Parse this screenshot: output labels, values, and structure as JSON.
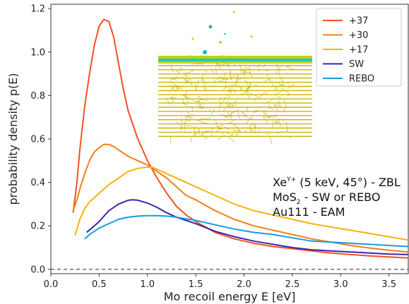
{
  "chart_data": {
    "type": "line",
    "xlabel": "Mo recoil energy E [eV]",
    "ylabel": "probability density p(E)",
    "xlim": [
      0.0,
      3.7
    ],
    "ylim": [
      -0.02,
      1.22
    ],
    "xticks": [
      "0.0",
      "0.5",
      "1.0",
      "1.5",
      "2.0",
      "2.5",
      "3.0",
      "3.5"
    ],
    "xtick_values": [
      0.0,
      0.5,
      1.0,
      1.5,
      2.0,
      2.5,
      3.0,
      3.5
    ],
    "yticks": [
      "0.0",
      "0.2",
      "0.4",
      "0.6",
      "0.8",
      "1.0",
      "1.2"
    ],
    "ytick_values": [
      0.0,
      0.2,
      0.4,
      0.6,
      0.8,
      1.0,
      1.2
    ],
    "legend_position": "top-right",
    "grid": false,
    "reference_line": {
      "y": 0.0,
      "style": "dashed",
      "color": "#222222"
    },
    "annotations": {
      "line1_main": "Xe",
      "line1_sup": "Y+",
      "line1_rest": " (5 keV, 45°)  - ZBL",
      "line2_main": "MoS",
      "line2_sub": "2",
      "line2_rest": " - SW or REBO",
      "line3": "Au111 - EAM"
    },
    "series": [
      {
        "name": "+37",
        "color": "#f4511e",
        "x": [
          0.23,
          0.27,
          0.3,
          0.35,
          0.4,
          0.45,
          0.5,
          0.55,
          0.6,
          0.65,
          0.7,
          0.75,
          0.8,
          0.9,
          1.0,
          1.1,
          1.2,
          1.3,
          1.4,
          1.5,
          1.7,
          1.9,
          2.1,
          2.3,
          2.5,
          2.7,
          2.9,
          3.1,
          3.3,
          3.5,
          3.7
        ],
        "y": [
          0.26,
          0.4,
          0.55,
          0.75,
          0.9,
          1.03,
          1.12,
          1.15,
          1.14,
          1.07,
          0.95,
          0.83,
          0.73,
          0.6,
          0.5,
          0.42,
          0.35,
          0.29,
          0.25,
          0.22,
          0.17,
          0.14,
          0.12,
          0.105,
          0.095,
          0.085,
          0.075,
          0.068,
          0.062,
          0.057,
          0.052
        ]
      },
      {
        "name": "+30",
        "color": "#f57f17",
        "x": [
          0.23,
          0.27,
          0.3,
          0.35,
          0.4,
          0.45,
          0.5,
          0.55,
          0.6,
          0.65,
          0.7,
          0.75,
          0.8,
          0.9,
          1.0,
          1.1,
          1.2,
          1.3,
          1.4,
          1.5,
          1.7,
          1.9,
          2.1,
          2.3,
          2.5,
          2.7,
          2.9,
          3.1,
          3.3,
          3.5,
          3.7
        ],
        "y": [
          0.27,
          0.32,
          0.37,
          0.44,
          0.5,
          0.54,
          0.56,
          0.575,
          0.575,
          0.565,
          0.55,
          0.535,
          0.52,
          0.5,
          0.48,
          0.45,
          0.42,
          0.38,
          0.34,
          0.32,
          0.27,
          0.23,
          0.2,
          0.18,
          0.16,
          0.14,
          0.125,
          0.11,
          0.098,
          0.088,
          0.08
        ]
      },
      {
        "name": "+17",
        "color": "#f9b208",
        "x": [
          0.25,
          0.3,
          0.35,
          0.4,
          0.45,
          0.5,
          0.55,
          0.6,
          0.7,
          0.8,
          0.9,
          1.0,
          1.05,
          1.1,
          1.2,
          1.3,
          1.4,
          1.5,
          1.7,
          1.9,
          2.1,
          2.3,
          2.5,
          2.7,
          2.9,
          3.1,
          3.3,
          3.5,
          3.7
        ],
        "y": [
          0.155,
          0.23,
          0.28,
          0.31,
          0.33,
          0.35,
          0.37,
          0.39,
          0.42,
          0.45,
          0.465,
          0.47,
          0.47,
          0.46,
          0.44,
          0.42,
          0.4,
          0.38,
          0.34,
          0.3,
          0.27,
          0.25,
          0.23,
          0.21,
          0.195,
          0.18,
          0.165,
          0.15,
          0.135
        ]
      },
      {
        "name": "SW",
        "color": "#3b25b0",
        "x": [
          0.37,
          0.45,
          0.5,
          0.55,
          0.6,
          0.7,
          0.8,
          0.85,
          0.9,
          1.0,
          1.1,
          1.2,
          1.3,
          1.4,
          1.5,
          1.7,
          1.9,
          2.1,
          2.3,
          2.5,
          2.7,
          2.9,
          3.1,
          3.3,
          3.5,
          3.7
        ],
        "y": [
          0.17,
          0.2,
          0.22,
          0.245,
          0.27,
          0.3,
          0.318,
          0.32,
          0.318,
          0.305,
          0.285,
          0.26,
          0.24,
          0.225,
          0.21,
          0.175,
          0.15,
          0.13,
          0.115,
          0.1,
          0.09,
          0.085,
          0.08,
          0.075,
          0.07,
          0.068
        ]
      },
      {
        "name": "REBO",
        "color": "#159de0",
        "x": [
          0.35,
          0.4,
          0.5,
          0.6,
          0.7,
          0.8,
          0.9,
          1.0,
          1.1,
          1.2,
          1.3,
          1.4,
          1.5,
          1.7,
          1.9,
          2.1,
          2.3,
          2.5,
          2.7,
          2.9,
          3.1,
          3.3,
          3.5,
          3.7
        ],
        "y": [
          0.14,
          0.16,
          0.19,
          0.21,
          0.23,
          0.24,
          0.245,
          0.247,
          0.247,
          0.245,
          0.24,
          0.232,
          0.225,
          0.205,
          0.185,
          0.17,
          0.16,
          0.145,
          0.13,
          0.125,
          0.12,
          0.115,
          0.11,
          0.105
        ]
      }
    ]
  }
}
